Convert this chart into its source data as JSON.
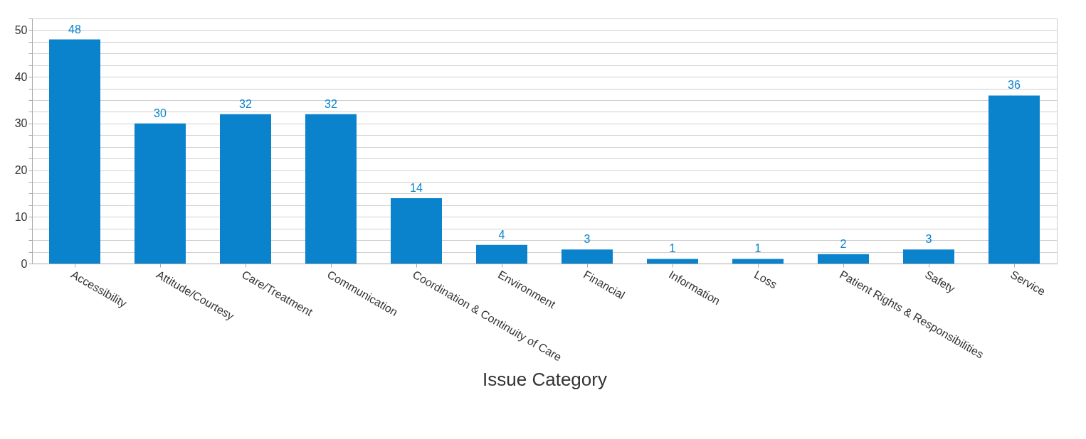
{
  "chart_data": {
    "type": "bar",
    "xlabel": "Issue Category",
    "categories": [
      "Accessibility",
      "Attitude/Courtesy",
      "Care/Treatment",
      "Communication",
      "Coordination & Continuity of Care",
      "Environment",
      "Financial",
      "Information",
      "Loss",
      "Patient Rights & Responsibilities",
      "Safety",
      "Service"
    ],
    "values": [
      48,
      30,
      32,
      32,
      14,
      4,
      3,
      1,
      1,
      2,
      3,
      36
    ],
    "color": "#0a82cc",
    "data_labels": true,
    "grid": true,
    "ylim": [
      0,
      52.5
    ],
    "yticks": [
      0,
      {
        "value": 2.5,
        "label": null
      },
      {
        "value": 5,
        "label": null
      },
      {
        "value": 7.5,
        "label": null
      },
      10,
      {
        "value": 12.5,
        "label": null
      },
      {
        "value": 15,
        "label": null
      },
      {
        "value": 17.5,
        "label": null
      },
      20,
      {
        "value": 22.5,
        "label": null
      },
      {
        "value": 25,
        "label": null
      },
      {
        "value": 27.5,
        "label": null
      },
      30,
      {
        "value": 32.5,
        "label": null
      },
      {
        "value": 35,
        "label": null
      },
      {
        "value": 37.5,
        "label": null
      },
      40,
      {
        "value": 42.5,
        "label": null
      },
      {
        "value": 45,
        "label": null
      },
      {
        "value": 47.5,
        "label": null
      },
      50,
      {
        "value": 52.5,
        "label": null
      }
    ]
  }
}
